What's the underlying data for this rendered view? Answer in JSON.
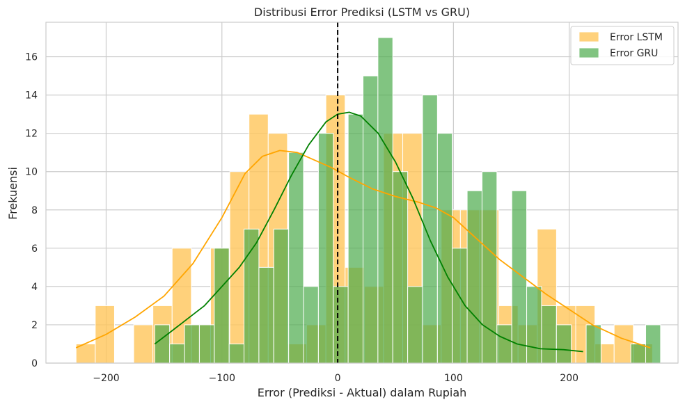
{
  "colors": {
    "lstm_fill": "#ffc65a",
    "gru_fill": "#4cab4c",
    "lstm_line": "#ffa500",
    "gru_line": "#008000",
    "grid": "#cccccc",
    "frame": "#cccccc",
    "zero_line": "#000000"
  },
  "chart_data": {
    "type": "bar",
    "subtype": "histogram-with-kde",
    "title": "Distribusi Error Prediksi (LSTM vs GRU)",
    "xlabel": "Error (Prediksi - Aktual) dalam Rupiah",
    "ylabel": "Frekuensi",
    "xlim": [
      -252,
      294
    ],
    "ylim": [
      0,
      17.8
    ],
    "xticks": [
      -200,
      -100,
      0,
      100,
      200
    ],
    "xtick_labels": [
      "−200",
      "−100",
      "0",
      "100",
      "200"
    ],
    "yticks": [
      0,
      2,
      4,
      6,
      8,
      10,
      12,
      14,
      16
    ],
    "ytick_labels": [
      "0",
      "2",
      "4",
      "6",
      "8",
      "10",
      "12",
      "14",
      "16"
    ],
    "grid": true,
    "legend_position": "top-right",
    "reference_line_x": 0,
    "series": [
      {
        "name": "Error LSTM",
        "bin_start": -226,
        "bin_width": 16.6,
        "counts": [
          1,
          3,
          0,
          2,
          3,
          6,
          2,
          6,
          10,
          13,
          12,
          1,
          2,
          14,
          5,
          4,
          12,
          12,
          2,
          8,
          8,
          8,
          3,
          2,
          7,
          3,
          3,
          1,
          2,
          1
        ],
        "kde": [
          [
            -226,
            0.8
          ],
          [
            -200,
            1.5
          ],
          [
            -175,
            2.4
          ],
          [
            -150,
            3.5
          ],
          [
            -125,
            5.2
          ],
          [
            -100,
            7.6
          ],
          [
            -80,
            9.9
          ],
          [
            -65,
            10.8
          ],
          [
            -50,
            11.1
          ],
          [
            -35,
            11.0
          ],
          [
            -20,
            10.6
          ],
          [
            -5,
            10.2
          ],
          [
            10,
            9.7
          ],
          [
            30,
            9.1
          ],
          [
            50,
            8.7
          ],
          [
            70,
            8.4
          ],
          [
            85,
            8.1
          ],
          [
            100,
            7.6
          ],
          [
            120,
            6.5
          ],
          [
            140,
            5.4
          ],
          [
            160,
            4.5
          ],
          [
            180,
            3.6
          ],
          [
            200,
            2.8
          ],
          [
            220,
            2.0
          ],
          [
            245,
            1.3
          ],
          [
            270,
            0.8
          ]
        ]
      },
      {
        "name": "Error GRU",
        "bin_start": -158,
        "bin_width": 12.85,
        "counts": [
          2,
          1,
          2,
          2,
          6,
          1,
          7,
          5,
          7,
          11,
          4,
          12,
          4,
          13,
          15,
          17,
          10,
          4,
          14,
          12,
          6,
          9,
          10,
          2,
          9,
          4,
          3,
          2,
          0,
          2,
          0,
          0,
          1,
          2
        ],
        "kde": [
          [
            -158,
            1.0
          ],
          [
            -145,
            1.6
          ],
          [
            -130,
            2.3
          ],
          [
            -115,
            3.0
          ],
          [
            -100,
            4.0
          ],
          [
            -85,
            5.0
          ],
          [
            -70,
            6.3
          ],
          [
            -55,
            8.0
          ],
          [
            -40,
            9.8
          ],
          [
            -25,
            11.4
          ],
          [
            -10,
            12.6
          ],
          [
            0,
            13.0
          ],
          [
            10,
            13.1
          ],
          [
            20,
            12.9
          ],
          [
            35,
            12.0
          ],
          [
            50,
            10.5
          ],
          [
            65,
            8.6
          ],
          [
            80,
            6.4
          ],
          [
            95,
            4.5
          ],
          [
            110,
            3.0
          ],
          [
            125,
            2.0
          ],
          [
            140,
            1.4
          ],
          [
            155,
            1.0
          ],
          [
            175,
            0.75
          ],
          [
            195,
            0.7
          ],
          [
            212,
            0.6
          ]
        ]
      }
    ]
  }
}
